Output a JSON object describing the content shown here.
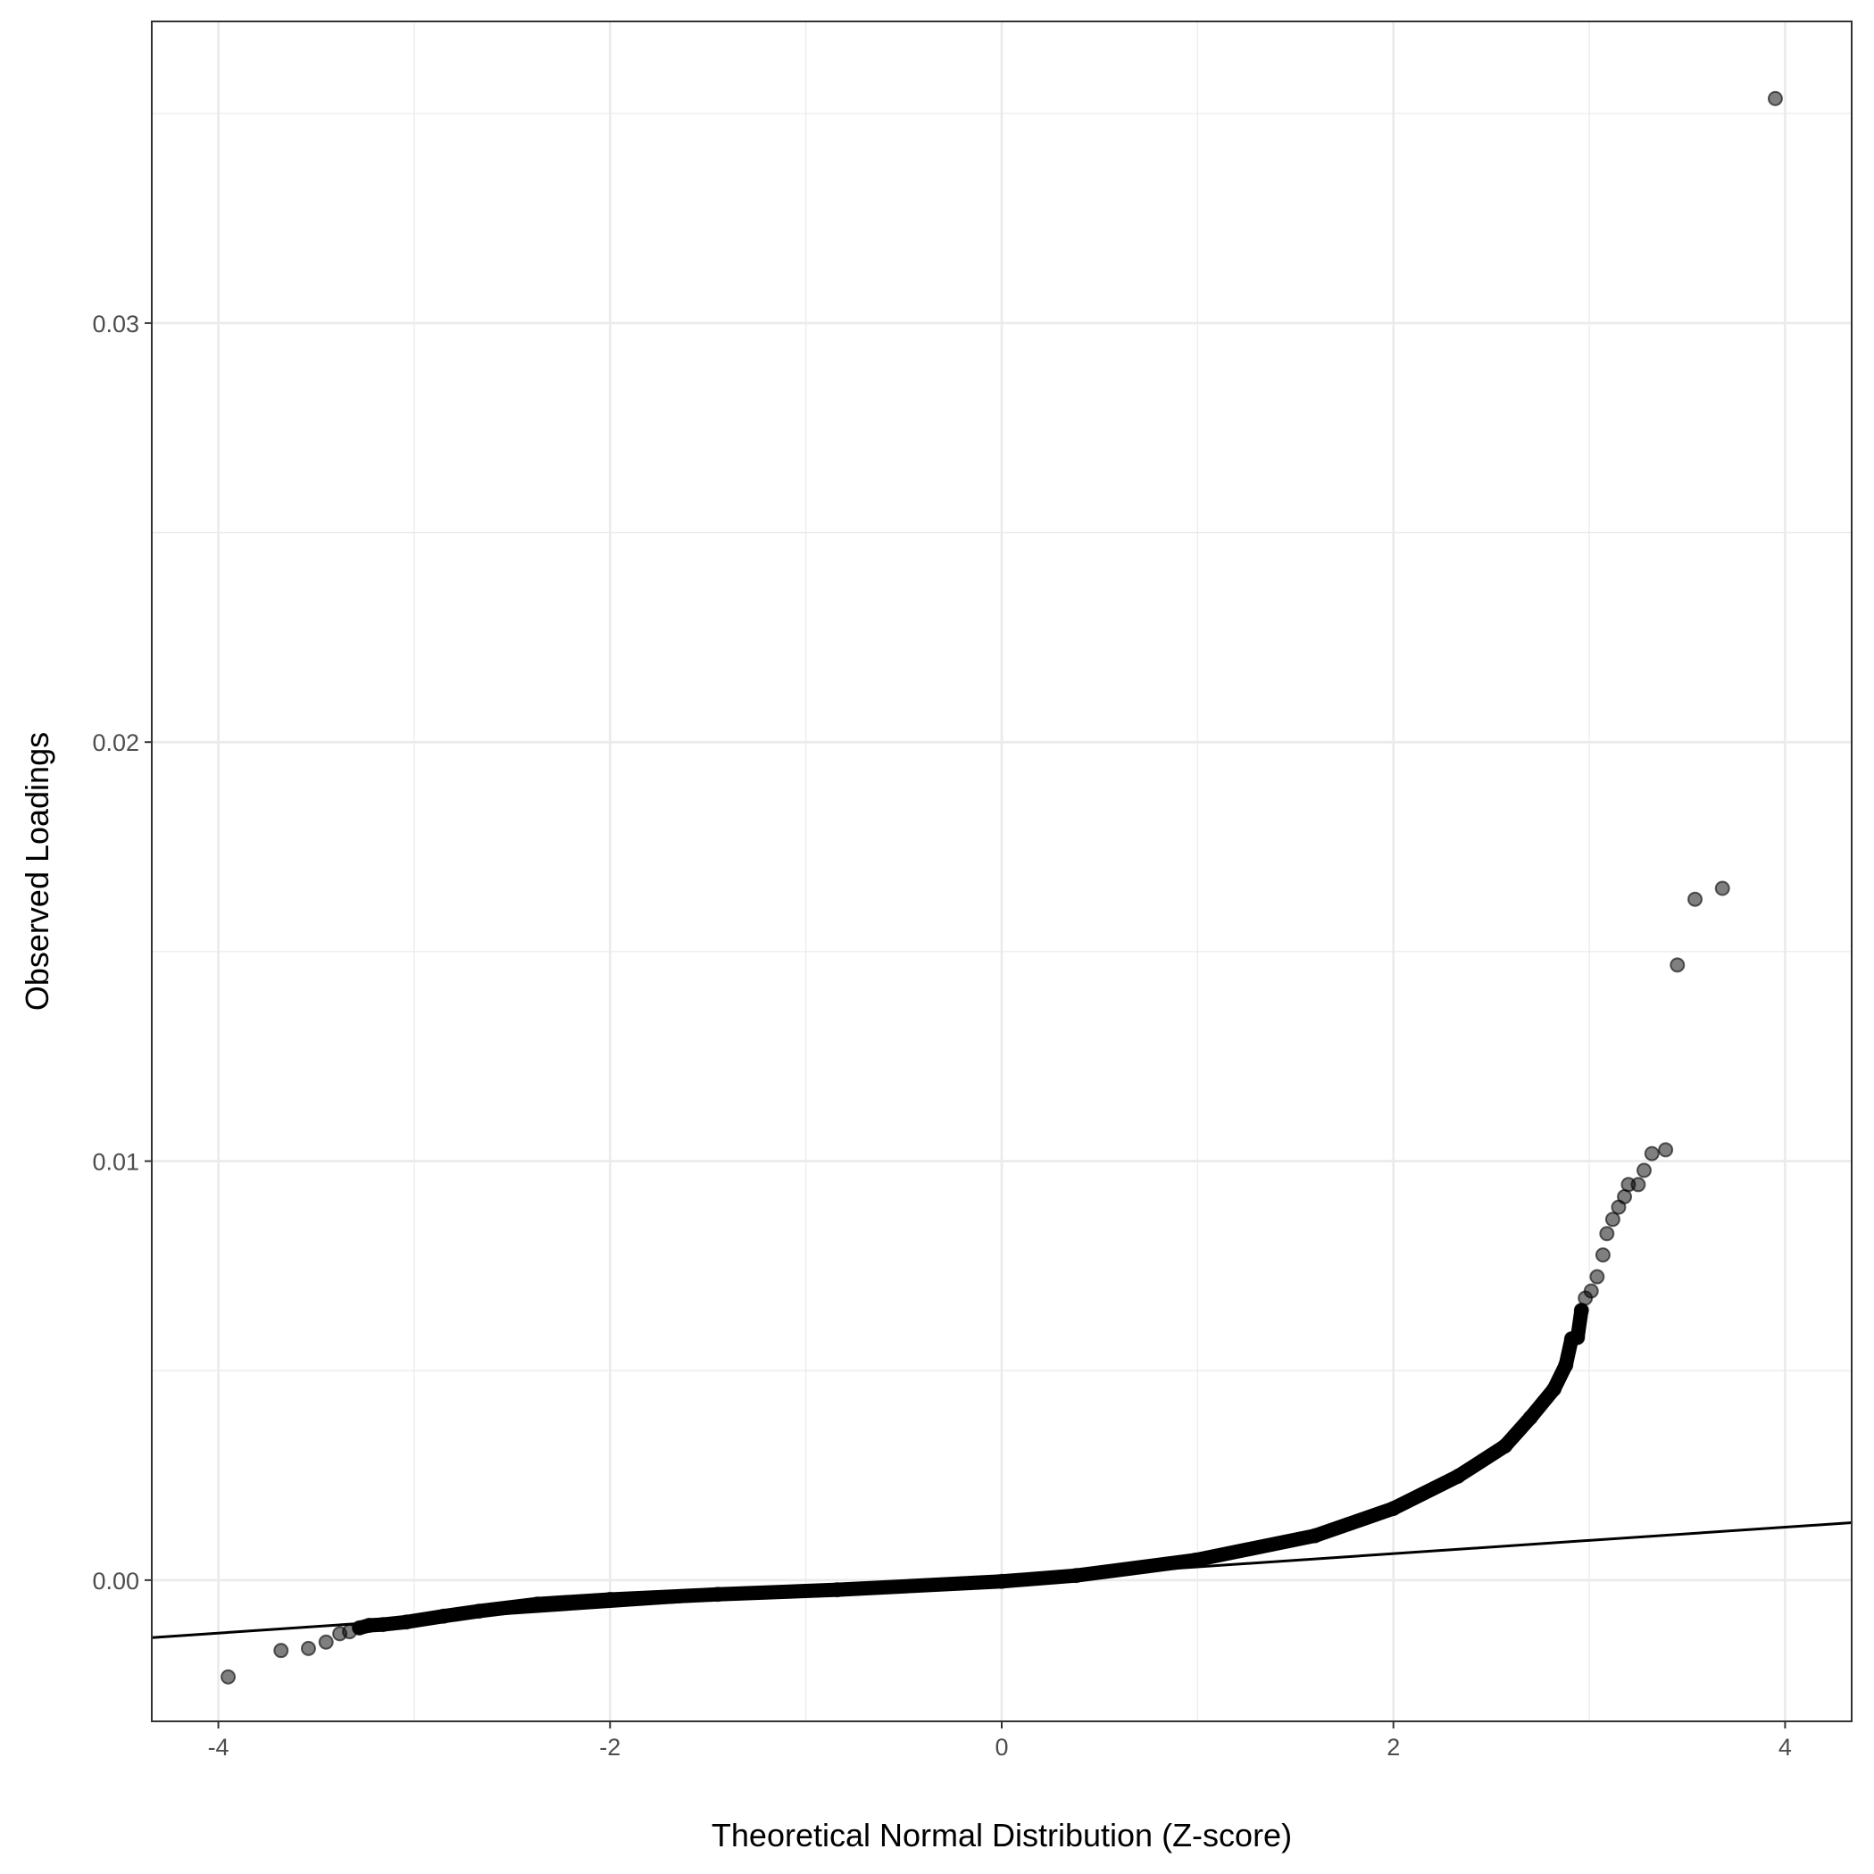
{
  "chart_data": {
    "type": "scatter",
    "title": "",
    "xlabel": "Theoretical Normal Distribution (Z-score)",
    "ylabel": "Observed Loadings",
    "xlim": [
      -4.34,
      4.34
    ],
    "ylim": [
      -0.00337,
      0.0372
    ],
    "x_ticks": [
      -4,
      -2,
      0,
      2,
      4
    ],
    "x_tick_labels": [
      "-4",
      "-2",
      "0",
      "2",
      "4"
    ],
    "y_ticks": [
      0,
      0.01,
      0.02,
      0.03
    ],
    "y_tick_labels": [
      "0.00",
      "0.01",
      "0.02",
      "0.03"
    ],
    "x_minor": [
      -3,
      -1,
      1,
      3
    ],
    "y_minor": [
      0.005,
      0.015,
      0.025,
      0.035
    ],
    "grid": true,
    "point_color": "#000000",
    "point_alpha": 0.5,
    "reference_line": {
      "intercept": 0,
      "slope": 0.000316,
      "color": "#000000"
    },
    "points": [
      [
        -3.95,
        -0.00231
      ],
      [
        -3.68,
        -0.00168
      ],
      [
        -3.54,
        -0.00163
      ],
      [
        -3.45,
        -0.00148
      ],
      [
        -3.38,
        -0.00128
      ],
      [
        -3.33,
        -0.00123
      ],
      [
        -3.28,
        -0.00114
      ],
      [
        -3.23,
        -0.00108
      ],
      [
        -3.16,
        -0.00106
      ],
      [
        -3.04,
        -0.001
      ],
      [
        -2.85,
        -0.00086
      ],
      [
        -2.67,
        -0.00074
      ],
      [
        -2.37,
        -0.00057
      ],
      [
        -2.0,
        -0.00046
      ],
      [
        -1.45,
        -0.00034
      ],
      [
        -0.84,
        -0.00023
      ],
      [
        0,
        -3e-05
      ],
      [
        0.38,
        0.00011
      ],
      [
        0.99,
        0.00048
      ],
      [
        1.6,
        0.00106
      ],
      [
        2.0,
        0.00171
      ],
      [
        2.33,
        0.00248
      ],
      [
        2.57,
        0.0032
      ],
      [
        2.7,
        0.00388
      ],
      [
        2.82,
        0.00456
      ],
      [
        2.88,
        0.00513
      ],
      [
        2.91,
        0.00576
      ],
      [
        2.94,
        0.00579
      ],
      [
        2.96,
        0.00644
      ],
      [
        2.98,
        0.00673
      ],
      [
        3.01,
        0.0069
      ],
      [
        3.04,
        0.00724
      ],
      [
        3.07,
        0.00776
      ],
      [
        3.09,
        0.00827
      ],
      [
        3.12,
        0.00861
      ],
      [
        3.15,
        0.0089
      ],
      [
        3.18,
        0.00915
      ],
      [
        3.2,
        0.00944
      ],
      [
        3.25,
        0.00944
      ],
      [
        3.28,
        0.00978
      ],
      [
        3.32,
        0.01018
      ],
      [
        3.39,
        0.01027
      ],
      [
        3.45,
        0.01468
      ],
      [
        3.54,
        0.01625
      ],
      [
        3.68,
        0.01651
      ],
      [
        3.95,
        0.03536
      ]
    ]
  }
}
